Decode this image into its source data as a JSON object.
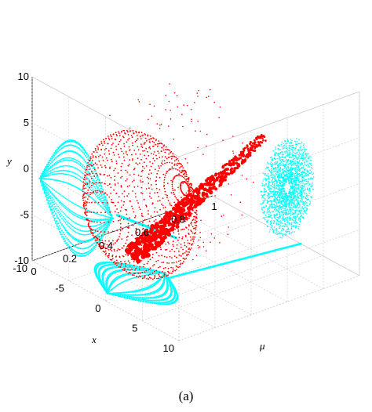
{
  "caption": "(a)",
  "chart_data": {
    "type": "scatter",
    "projection": "3d",
    "grid": true,
    "xlabel": "x",
    "ylabel": "y",
    "zlabel": "μ",
    "xlim": [
      -10,
      10
    ],
    "ylim": [
      -10,
      10
    ],
    "zlim": [
      0,
      1
    ],
    "xticks": [
      "-10",
      "-5",
      "0",
      "5",
      "10"
    ],
    "yticks": [
      "-10",
      "-5",
      "0",
      "5",
      "10"
    ],
    "zticks": [
      "0",
      "0.2",
      "0.4",
      "0.6",
      "0.8",
      "1"
    ],
    "colors": {
      "main": "#ff0000",
      "projections": "#00ffff"
    },
    "series": [
      {
        "kind": "3d-trajectory",
        "description_points": [
          [
            -6,
            -6,
            0.0
          ],
          [
            0,
            0,
            0.1
          ],
          [
            7,
            6,
            0.3
          ],
          [
            5,
            8,
            0.5
          ],
          [
            -2,
            5,
            0.6
          ],
          [
            -7,
            -4,
            0.4
          ],
          [
            -9,
            -8,
            0.2
          ],
          [
            0,
            -2,
            0.8
          ],
          [
            2,
            0,
            1.0
          ]
        ]
      }
    ]
  }
}
